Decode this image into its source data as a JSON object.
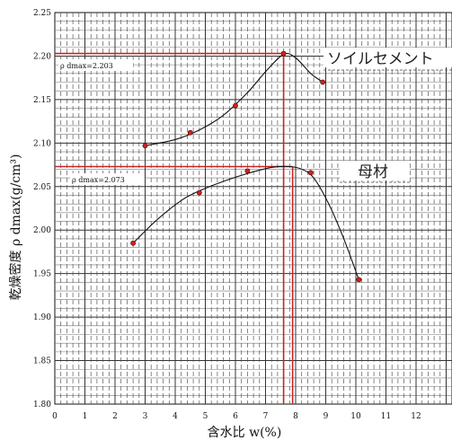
{
  "chart_data": {
    "type": "scatter",
    "xlabel": "含水比 w(%)",
    "ylabel": "乾燥密度 ρ dmax(g/cm³)",
    "xlim": [
      0,
      13
    ],
    "ylim": [
      1.8,
      2.25
    ],
    "x_ticks": [
      0,
      1,
      2,
      3,
      4,
      5,
      6,
      7,
      8,
      9,
      10,
      11,
      12
    ],
    "y_ticks": [
      "1.80",
      "1.85",
      "1.90",
      "1.95",
      "2.00",
      "2.05",
      "2.10",
      "2.15",
      "2.20",
      "2.25"
    ],
    "grid": true,
    "series": [
      {
        "name": "ソイルセメント",
        "color": "#cc2222",
        "points": [
          {
            "x": 3.0,
            "y": 2.097
          },
          {
            "x": 4.5,
            "y": 2.112
          },
          {
            "x": 6.0,
            "y": 2.143
          },
          {
            "x": 7.6,
            "y": 2.203
          },
          {
            "x": 8.9,
            "y": 2.17
          }
        ],
        "curve": [
          [
            3.0,
            2.097
          ],
          [
            4.0,
            2.104
          ],
          [
            4.8,
            2.115
          ],
          [
            5.6,
            2.132
          ],
          [
            6.4,
            2.158
          ],
          [
            7.0,
            2.182
          ],
          [
            7.6,
            2.202
          ],
          [
            8.0,
            2.198
          ],
          [
            8.5,
            2.18
          ],
          [
            8.9,
            2.17
          ]
        ]
      },
      {
        "name": "母材",
        "color": "#cc2222",
        "points": [
          {
            "x": 2.6,
            "y": 1.985
          },
          {
            "x": 4.8,
            "y": 2.043
          },
          {
            "x": 6.4,
            "y": 2.068
          },
          {
            "x": 8.5,
            "y": 2.066
          },
          {
            "x": 10.1,
            "y": 1.943
          }
        ],
        "curve": [
          [
            2.6,
            1.985
          ],
          [
            3.4,
            2.012
          ],
          [
            4.2,
            2.034
          ],
          [
            4.8,
            2.045
          ],
          [
            5.6,
            2.056
          ],
          [
            6.4,
            2.065
          ],
          [
            7.2,
            2.072
          ],
          [
            7.8,
            2.073
          ],
          [
            8.2,
            2.07
          ],
          [
            8.6,
            2.06
          ],
          [
            9.1,
            2.03
          ],
          [
            9.6,
            1.99
          ],
          [
            10.1,
            1.943
          ]
        ]
      }
    ],
    "reference_lines": {
      "color": "#cc2222",
      "h": [
        2.203,
        2.073
      ],
      "v": [
        7.6,
        7.9
      ]
    },
    "annotations": [
      {
        "text": "ρ dmax=2.203"
      },
      {
        "text": "ρ dmax=2.073"
      }
    ]
  }
}
